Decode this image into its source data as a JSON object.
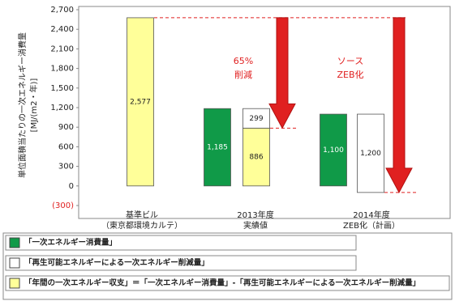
{
  "chart_data": {
    "type": "bar",
    "y_label": "単位面積当たりの一次エネルギー消費量\n[MJ/(m2・年)]",
    "categories": [
      "基準ビル\n（東京都環境カルテ）",
      "2013年度\n実績値",
      "2014年度\nZEB化（計画）"
    ],
    "series": [
      {
        "name": "「一次エネルギー消費量」",
        "color": "#109a48",
        "values": [
          null,
          1185,
          1100
        ],
        "value_labels": [
          null,
          "1,185",
          "1,100"
        ]
      },
      {
        "name": "「再生可能エネルギーによる一次エネルギー削減量」",
        "color": "#ffffff",
        "values": [
          null,
          299,
          1200
        ],
        "value_labels": [
          null,
          "299",
          "1,200"
        ]
      },
      {
        "name": "「年間の一次エネルギー収支」＝「一次エネルギー消費量」-「再生可能エネルギーによる一次エネルギー削減量」",
        "color": "#ffff99",
        "values": [
          2577,
          886,
          null
        ],
        "value_labels": [
          "2,577",
          "886",
          null
        ]
      }
    ],
    "ylim": [
      -300,
      2700
    ],
    "yticks": [
      {
        "value": -300,
        "label": "(300)"
      },
      0,
      300,
      600,
      900,
      {
        "value": 1200,
        "label": "1,200"
      },
      {
        "value": 1500,
        "label": "1,500"
      },
      {
        "value": 1800,
        "label": "1,800"
      },
      {
        "value": 2100,
        "label": "2,100"
      },
      {
        "value": 2400,
        "label": "2,400"
      },
      {
        "value": 2700,
        "label": "2,700"
      }
    ],
    "negative_tick_color": "#e02020",
    "annotations": [
      "65%",
      "削減",
      "ソース",
      "ZEB化"
    ],
    "annotation_color": "#e02020"
  }
}
